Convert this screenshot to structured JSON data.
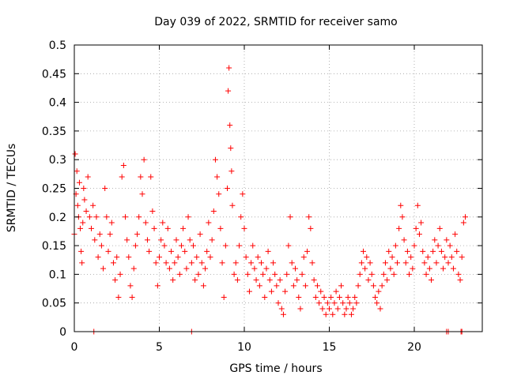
{
  "chart_data": {
    "type": "scatter",
    "title": "Day 039 of 2022, SRMTID for receiver samo",
    "xlabel": "GPS time / hours",
    "ylabel": "SRMTID / TECUs",
    "xlim": [
      0,
      24
    ],
    "ylim": [
      0,
      0.5
    ],
    "x_ticks": [
      0,
      5,
      10,
      15,
      20
    ],
    "x_tick_labels": [
      "0",
      "5",
      "10",
      "15",
      "20"
    ],
    "y_ticks": [
      0,
      0.05,
      0.1,
      0.15,
      0.2,
      0.25,
      0.3,
      0.35,
      0.4,
      0.45,
      0.5
    ],
    "y_tick_labels": [
      "0",
      "0.05",
      "0.1",
      "0.15",
      "0.2",
      "0.25",
      "0.3",
      "0.35",
      "0.4",
      "0.45",
      "0.5"
    ],
    "grid": true,
    "marker": "+",
    "series": [
      {
        "name": "SRMTID",
        "color": "#ff0000",
        "points": [
          [
            0.0,
            0.17
          ],
          [
            0.05,
            0.31
          ],
          [
            0.1,
            0.24
          ],
          [
            0.15,
            0.28
          ],
          [
            0.2,
            0.22
          ],
          [
            0.25,
            0.2
          ],
          [
            0.3,
            0.26
          ],
          [
            0.35,
            0.18
          ],
          [
            0.4,
            0.14
          ],
          [
            0.45,
            0.12
          ],
          [
            0.5,
            0.19
          ],
          [
            0.55,
            0.25
          ],
          [
            0.6,
            0.23
          ],
          [
            0.7,
            0.21
          ],
          [
            0.8,
            0.27
          ],
          [
            0.9,
            0.2
          ],
          [
            1.0,
            0.18
          ],
          [
            1.1,
            0.22
          ],
          [
            1.2,
            0.16
          ],
          [
            1.3,
            0.2
          ],
          [
            1.4,
            0.13
          ],
          [
            1.5,
            0.17
          ],
          [
            1.6,
            0.15
          ],
          [
            1.7,
            0.11
          ],
          [
            1.8,
            0.25
          ],
          [
            1.9,
            0.2
          ],
          [
            2.0,
            0.14
          ],
          [
            2.1,
            0.17
          ],
          [
            2.2,
            0.19
          ],
          [
            2.3,
            0.12
          ],
          [
            2.4,
            0.09
          ],
          [
            2.5,
            0.13
          ],
          [
            2.6,
            0.06
          ],
          [
            2.7,
            0.1
          ],
          [
            2.8,
            0.27
          ],
          [
            2.9,
            0.29
          ],
          [
            3.0,
            0.2
          ],
          [
            3.1,
            0.16
          ],
          [
            3.2,
            0.13
          ],
          [
            3.3,
            0.08
          ],
          [
            3.4,
            0.06
          ],
          [
            3.5,
            0.11
          ],
          [
            3.6,
            0.15
          ],
          [
            3.7,
            0.17
          ],
          [
            3.8,
            0.2
          ],
          [
            3.9,
            0.27
          ],
          [
            4.0,
            0.24
          ],
          [
            4.1,
            0.3
          ],
          [
            4.2,
            0.19
          ],
          [
            4.3,
            0.16
          ],
          [
            4.4,
            0.14
          ],
          [
            4.5,
            0.27
          ],
          [
            4.6,
            0.21
          ],
          [
            4.7,
            0.18
          ],
          [
            4.8,
            0.12
          ],
          [
            4.9,
            0.08
          ],
          [
            5.0,
            0.13
          ],
          [
            5.1,
            0.16
          ],
          [
            5.2,
            0.19
          ],
          [
            5.3,
            0.15
          ],
          [
            5.4,
            0.12
          ],
          [
            5.5,
            0.18
          ],
          [
            5.6,
            0.11
          ],
          [
            5.7,
            0.14
          ],
          [
            5.8,
            0.09
          ],
          [
            5.9,
            0.12
          ],
          [
            6.0,
            0.16
          ],
          [
            6.1,
            0.13
          ],
          [
            6.2,
            0.1
          ],
          [
            6.3,
            0.15
          ],
          [
            6.4,
            0.18
          ],
          [
            6.5,
            0.14
          ],
          [
            6.6,
            0.11
          ],
          [
            6.7,
            0.2
          ],
          [
            6.8,
            0.16
          ],
          [
            6.9,
            0.12
          ],
          [
            7.0,
            0.15
          ],
          [
            7.1,
            0.09
          ],
          [
            7.2,
            0.13
          ],
          [
            7.3,
            0.1
          ],
          [
            7.4,
            0.17
          ],
          [
            7.5,
            0.12
          ],
          [
            7.6,
            0.08
          ],
          [
            7.7,
            0.11
          ],
          [
            7.8,
            0.14
          ],
          [
            7.9,
            0.19
          ],
          [
            8.0,
            0.13
          ],
          [
            8.1,
            0.16
          ],
          [
            8.2,
            0.21
          ],
          [
            8.3,
            0.3
          ],
          [
            8.4,
            0.27
          ],
          [
            8.5,
            0.24
          ],
          [
            8.6,
            0.18
          ],
          [
            8.7,
            0.12
          ],
          [
            8.8,
            0.06
          ],
          [
            8.9,
            0.15
          ],
          [
            9.0,
            0.25
          ],
          [
            9.05,
            0.42
          ],
          [
            9.1,
            0.46
          ],
          [
            9.15,
            0.36
          ],
          [
            9.2,
            0.32
          ],
          [
            9.25,
            0.28
          ],
          [
            9.3,
            0.22
          ],
          [
            9.4,
            0.1
          ],
          [
            9.5,
            0.12
          ],
          [
            9.6,
            0.09
          ],
          [
            9.7,
            0.15
          ],
          [
            9.8,
            0.2
          ],
          [
            9.9,
            0.24
          ],
          [
            10.0,
            0.18
          ],
          [
            10.1,
            0.13
          ],
          [
            10.2,
            0.1
          ],
          [
            10.3,
            0.07
          ],
          [
            10.4,
            0.12
          ],
          [
            10.5,
            0.15
          ],
          [
            10.6,
            0.11
          ],
          [
            10.7,
            0.09
          ],
          [
            10.8,
            0.13
          ],
          [
            10.9,
            0.08
          ],
          [
            11.0,
            0.12
          ],
          [
            11.1,
            0.1
          ],
          [
            11.2,
            0.06
          ],
          [
            11.3,
            0.11
          ],
          [
            11.4,
            0.14
          ],
          [
            11.5,
            0.09
          ],
          [
            11.6,
            0.07
          ],
          [
            11.7,
            0.12
          ],
          [
            11.8,
            0.1
          ],
          [
            11.9,
            0.08
          ],
          [
            12.0,
            0.05
          ],
          [
            12.1,
            0.09
          ],
          [
            12.2,
            0.04
          ],
          [
            12.3,
            0.03
          ],
          [
            12.4,
            0.07
          ],
          [
            12.5,
            0.1
          ],
          [
            12.6,
            0.15
          ],
          [
            12.7,
            0.2
          ],
          [
            12.8,
            0.12
          ],
          [
            12.9,
            0.08
          ],
          [
            13.0,
            0.11
          ],
          [
            13.1,
            0.09
          ],
          [
            13.2,
            0.06
          ],
          [
            13.3,
            0.04
          ],
          [
            13.4,
            0.1
          ],
          [
            13.5,
            0.13
          ],
          [
            13.6,
            0.08
          ],
          [
            13.7,
            0.14
          ],
          [
            13.8,
            0.2
          ],
          [
            13.9,
            0.18
          ],
          [
            14.0,
            0.12
          ],
          [
            14.1,
            0.09
          ],
          [
            14.2,
            0.06
          ],
          [
            14.3,
            0.08
          ],
          [
            14.4,
            0.05
          ],
          [
            14.5,
            0.07
          ],
          [
            14.6,
            0.04
          ],
          [
            14.7,
            0.06
          ],
          [
            14.8,
            0.03
          ],
          [
            14.9,
            0.05
          ],
          [
            15.0,
            0.04
          ],
          [
            15.1,
            0.06
          ],
          [
            15.2,
            0.03
          ],
          [
            15.3,
            0.05
          ],
          [
            15.4,
            0.07
          ],
          [
            15.5,
            0.04
          ],
          [
            15.6,
            0.06
          ],
          [
            15.7,
            0.08
          ],
          [
            15.8,
            0.05
          ],
          [
            15.9,
            0.03
          ],
          [
            16.0,
            0.04
          ],
          [
            16.1,
            0.06
          ],
          [
            16.2,
            0.05
          ],
          [
            16.3,
            0.03
          ],
          [
            16.4,
            0.04
          ],
          [
            16.5,
            0.06
          ],
          [
            16.6,
            0.05
          ],
          [
            16.7,
            0.08
          ],
          [
            16.8,
            0.1
          ],
          [
            16.9,
            0.12
          ],
          [
            17.0,
            0.14
          ],
          [
            17.1,
            0.11
          ],
          [
            17.2,
            0.13
          ],
          [
            17.3,
            0.09
          ],
          [
            17.4,
            0.12
          ],
          [
            17.5,
            0.1
          ],
          [
            17.6,
            0.08
          ],
          [
            17.7,
            0.06
          ],
          [
            17.8,
            0.05
          ],
          [
            17.9,
            0.07
          ],
          [
            18.0,
            0.04
          ],
          [
            18.1,
            0.08
          ],
          [
            18.2,
            0.1
          ],
          [
            18.3,
            0.12
          ],
          [
            18.4,
            0.09
          ],
          [
            18.5,
            0.14
          ],
          [
            18.6,
            0.11
          ],
          [
            18.7,
            0.13
          ],
          [
            18.8,
            0.1
          ],
          [
            18.9,
            0.15
          ],
          [
            19.0,
            0.12
          ],
          [
            19.1,
            0.18
          ],
          [
            19.2,
            0.22
          ],
          [
            19.3,
            0.2
          ],
          [
            19.4,
            0.16
          ],
          [
            19.5,
            0.12
          ],
          [
            19.6,
            0.14
          ],
          [
            19.7,
            0.1
          ],
          [
            19.8,
            0.13
          ],
          [
            19.9,
            0.11
          ],
          [
            20.0,
            0.15
          ],
          [
            20.1,
            0.18
          ],
          [
            20.2,
            0.22
          ],
          [
            20.3,
            0.17
          ],
          [
            20.4,
            0.19
          ],
          [
            20.5,
            0.14
          ],
          [
            20.6,
            0.12
          ],
          [
            20.7,
            0.1
          ],
          [
            20.8,
            0.13
          ],
          [
            20.9,
            0.11
          ],
          [
            21.0,
            0.09
          ],
          [
            21.1,
            0.14
          ],
          [
            21.2,
            0.16
          ],
          [
            21.3,
            0.12
          ],
          [
            21.4,
            0.15
          ],
          [
            21.5,
            0.18
          ],
          [
            21.6,
            0.14
          ],
          [
            21.7,
            0.11
          ],
          [
            21.8,
            0.13
          ],
          [
            21.9,
            0.16
          ],
          [
            22.0,
            0.12
          ],
          [
            22.1,
            0.15
          ],
          [
            22.2,
            0.13
          ],
          [
            22.3,
            0.11
          ],
          [
            22.4,
            0.17
          ],
          [
            22.5,
            0.14
          ],
          [
            22.6,
            0.1
          ],
          [
            22.7,
            0.09
          ],
          [
            22.8,
            0.13
          ],
          [
            22.9,
            0.19
          ],
          [
            23.0,
            0.2
          ],
          [
            1.15,
            0.0
          ],
          [
            6.9,
            0.0
          ],
          [
            21.9,
            0.0
          ],
          [
            22.0,
            0.0
          ],
          [
            22.75,
            0.0
          ],
          [
            22.8,
            0.0
          ]
        ]
      }
    ]
  }
}
